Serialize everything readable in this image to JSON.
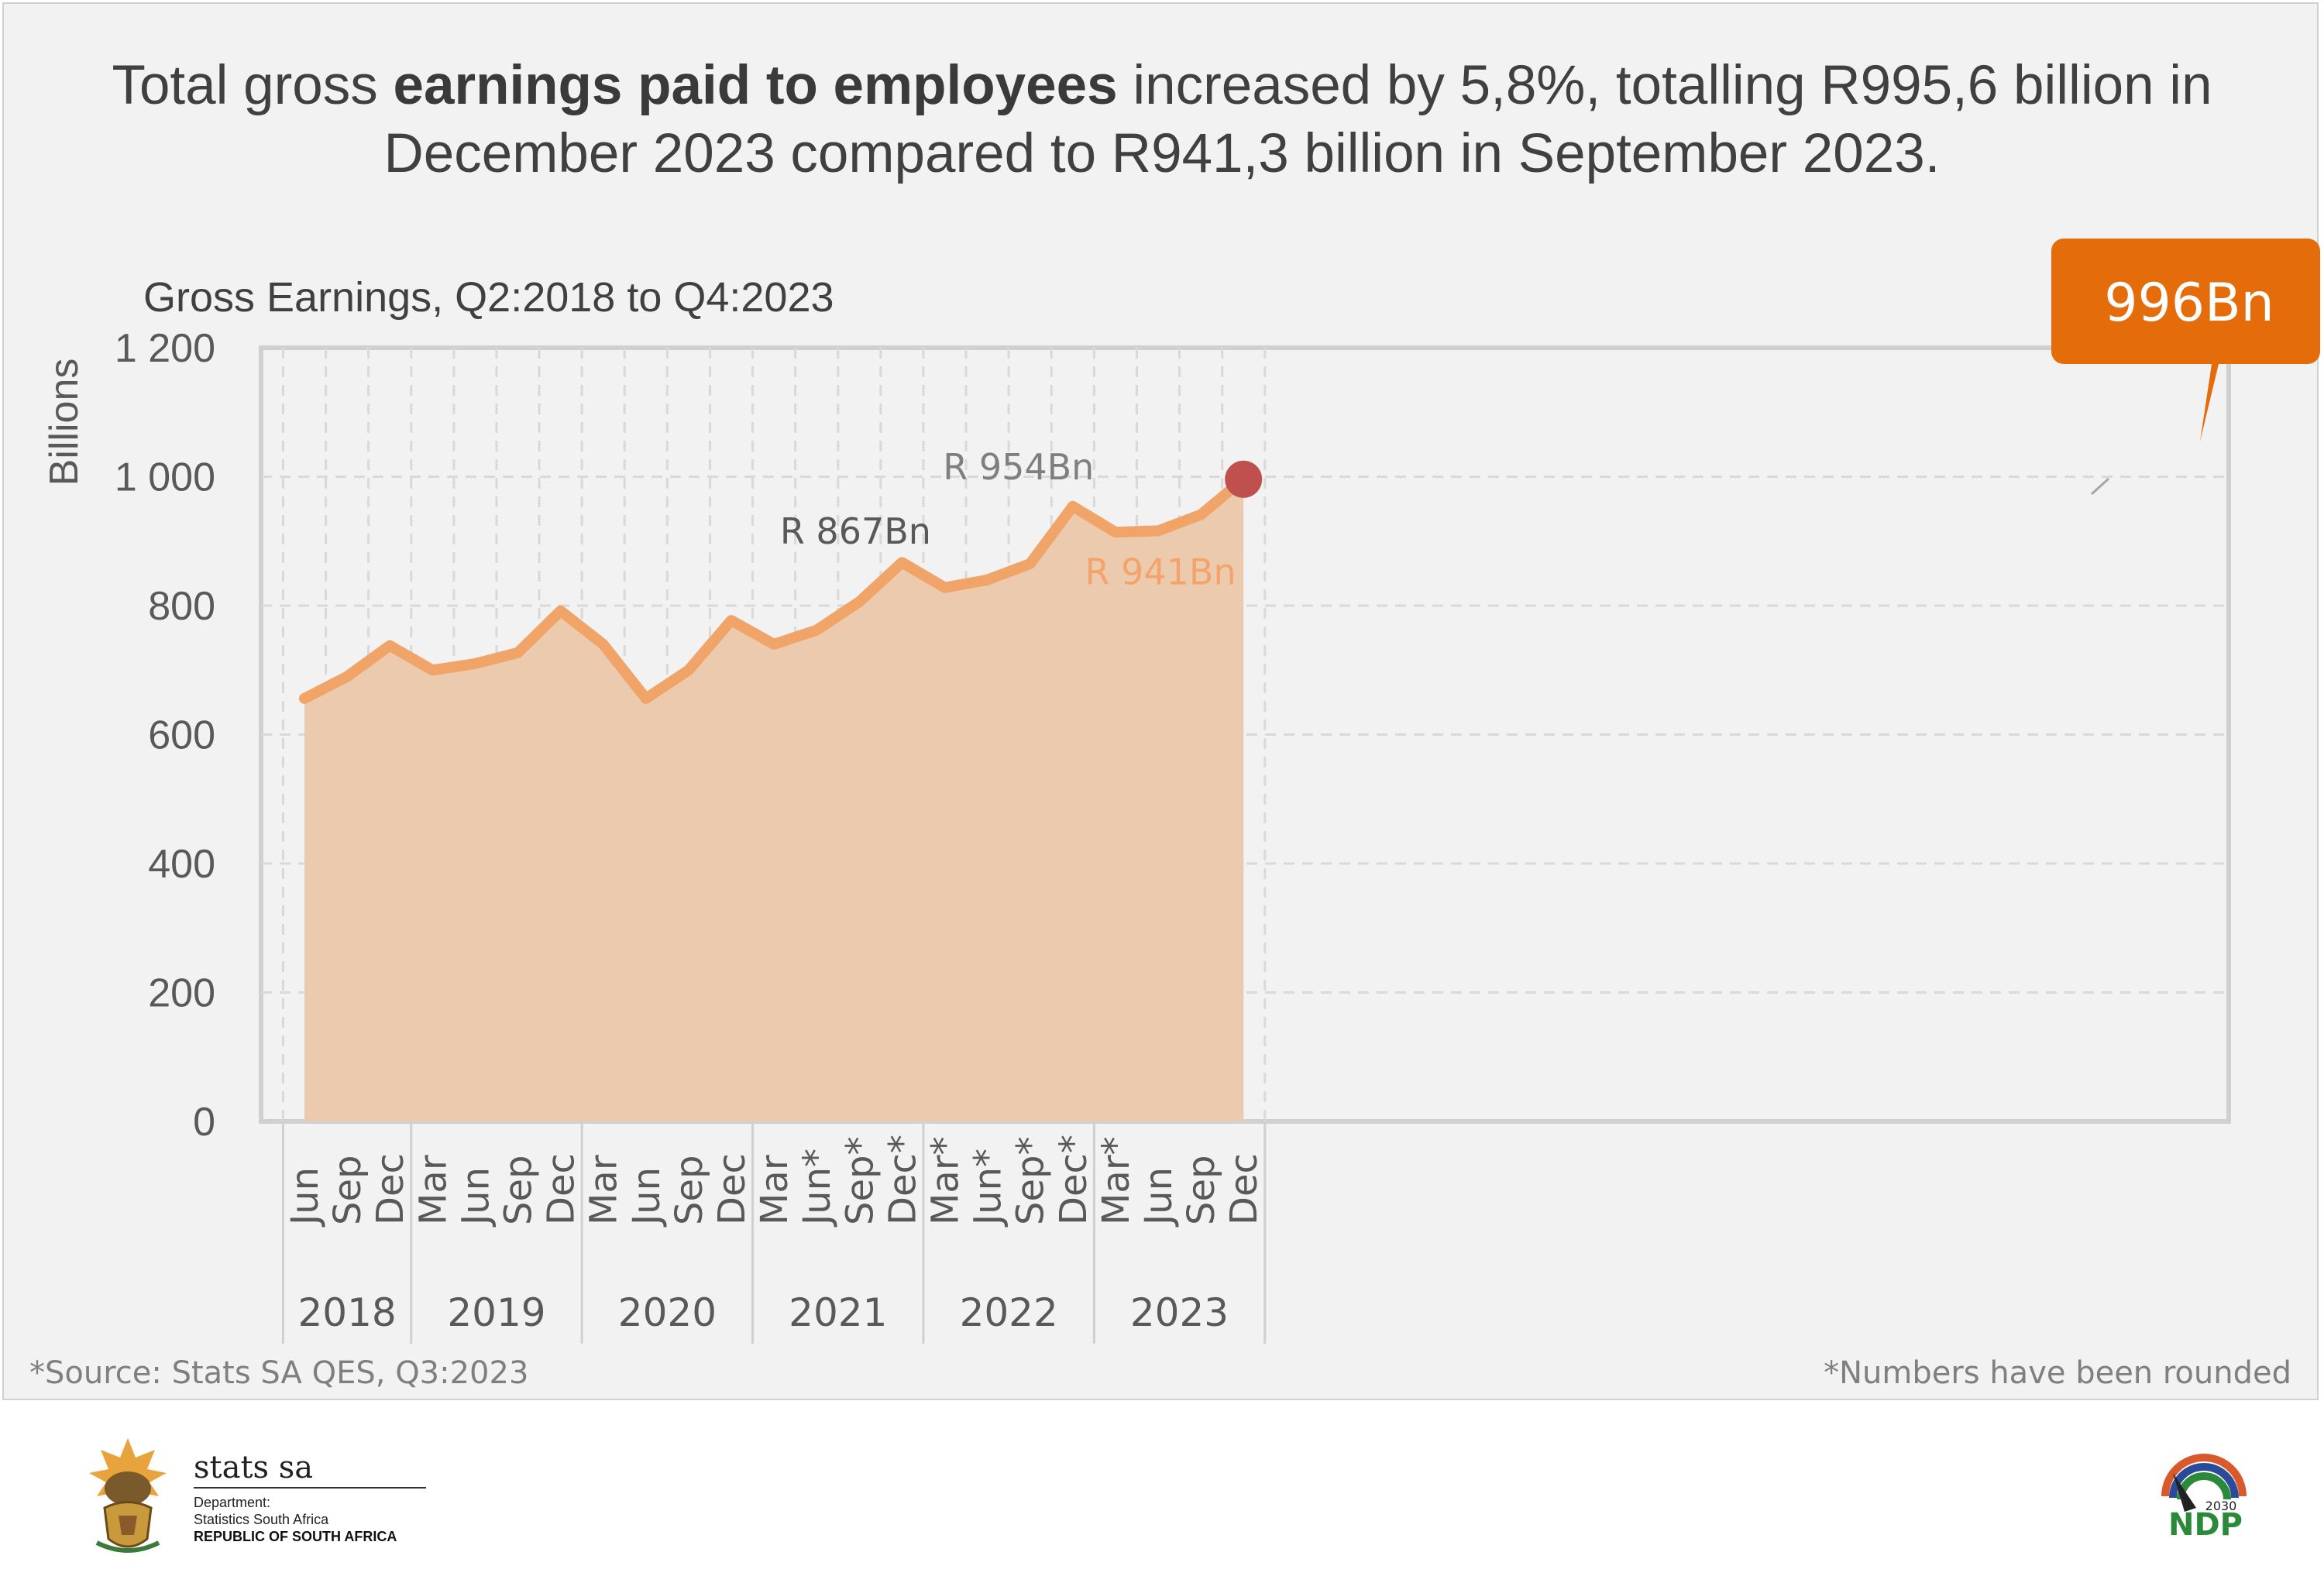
{
  "headline": {
    "pre": "Total gross ",
    "bold": "earnings paid to employees",
    "post": " increased by 5,8%, totalling R995,6 billion in December 2023 compared to R941,3 billion in September 2023."
  },
  "chart_data": {
    "type": "area",
    "title": "Gross Earnings, Q2:2018 to Q4:2023",
    "ylabel": "Billions",
    "xlabel": "",
    "ylim": [
      0,
      1200
    ],
    "yticks": [
      0,
      200,
      400,
      600,
      800,
      1000,
      1200
    ],
    "ytick_labels": [
      "0",
      "200",
      "400",
      "600",
      "800",
      "1 000",
      "1 200"
    ],
    "grid": true,
    "categories": [
      "Jun",
      "Sep",
      "Dec",
      "Mar",
      "Jun",
      "Sep",
      "Dec",
      "Mar",
      "Jun",
      "Sep",
      "Dec",
      "Mar",
      "Jun*",
      "Sep*",
      "Dec*",
      "Mar*",
      "Jun*",
      "Sep*",
      "Dec*",
      "Mar*",
      "Jun",
      "Sep",
      "Dec"
    ],
    "years": [
      {
        "label": "2018",
        "count": 3
      },
      {
        "label": "2019",
        "count": 4
      },
      {
        "label": "2020",
        "count": 4
      },
      {
        "label": "2021",
        "count": 4
      },
      {
        "label": "2022",
        "count": 4
      },
      {
        "label": "2023",
        "count": 4
      }
    ],
    "series": [
      {
        "name": "Gross Earnings",
        "values": [
          656,
          690,
          738,
          700,
          710,
          727,
          792,
          740,
          656,
          700,
          777,
          740,
          762,
          806,
          867,
          828,
          840,
          865,
          954,
          914,
          916,
          941,
          996
        ]
      }
    ],
    "annotations": [
      {
        "index": 14,
        "text": "R 867Bn",
        "color": "#595959"
      },
      {
        "index": 18,
        "text": "R 954Bn",
        "color": "#7f7f7f"
      },
      {
        "index": 21,
        "text": "R 941Bn",
        "color": "#f4a46a"
      }
    ],
    "callout": {
      "index": 22,
      "text": "996Bn"
    },
    "colors": {
      "line": "#f0a468",
      "fill": "#eccaae",
      "marker": "#c0504d",
      "callout": "#e46c0a"
    }
  },
  "source_note": "*Source: Stats SA QES, Q3:2023",
  "rounding_note": "*Numbers have been rounded",
  "footer": {
    "brand": "stats sa",
    "line1": "Department:",
    "line2": "Statistics South Africa",
    "line3": "REPUBLIC OF SOUTH AFRICA",
    "ndp_year": "2030",
    "ndp": "NDP"
  }
}
